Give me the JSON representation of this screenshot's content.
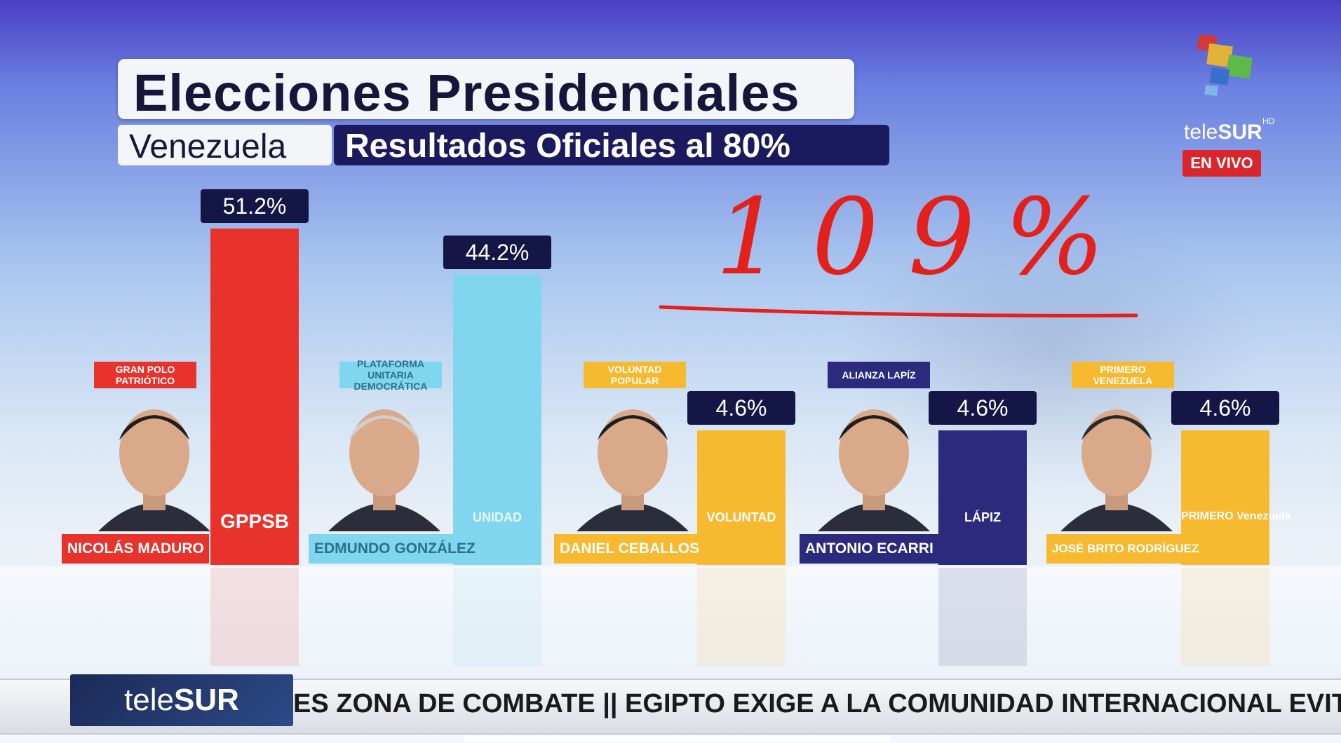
{
  "header": {
    "title": "Elecciones Presidenciales",
    "country": "Venezuela",
    "subtitle": "Resultados Oficiales al 80%"
  },
  "broadcaster": {
    "name_light": "tele",
    "name_bold": "SUR",
    "hd": "HD",
    "live_badge": "EN VIVO"
  },
  "annotation": {
    "handwritten": "109%",
    "color": "#e3201b"
  },
  "chart_data": {
    "type": "bar",
    "title": "Elecciones Presidenciales",
    "subtitle": "Resultados Oficiales al 80%",
    "categories": [
      "NICOLÁS MADURO",
      "EDMUNDO GONZÁLEZ",
      "DANIEL CEBALLOS",
      "ANTONIO ECARRI",
      "JOSÉ BRITO RODRÍGUEZ"
    ],
    "values": [
      51.2,
      44.2,
      4.6,
      4.6,
      4.6
    ],
    "labels": [
      "51.2%",
      "44.2%",
      "4.6%",
      "4.6%",
      "4.6%"
    ],
    "parties": [
      "GRAN POLO PATRIÓTICO",
      "PLATAFORMA UNITARIA DEMOCRÁTICA",
      "VOLUNTAD POPULAR",
      "ALIANZA LAPÍZ",
      "PRIMERO VENEZUELA"
    ],
    "bar_logos": [
      "GPPSB",
      "UNIDAD",
      "VOLUNTAD",
      "LÁPIZ",
      "PRIMERO Venezuela"
    ],
    "colors": [
      "#e8322c",
      "#7fd6ee",
      "#f6b930",
      "#2b2a7d",
      "#f6b930"
    ],
    "ylim": [
      0,
      51.2
    ]
  },
  "ticker": {
    "logo_light": "tele",
    "logo_bold": "SUR",
    "text": "ES ZONA DE COMBATE  ||  EGIPTO EXIGE A LA COMUNIDAD INTERNACIONAL EVITA"
  }
}
